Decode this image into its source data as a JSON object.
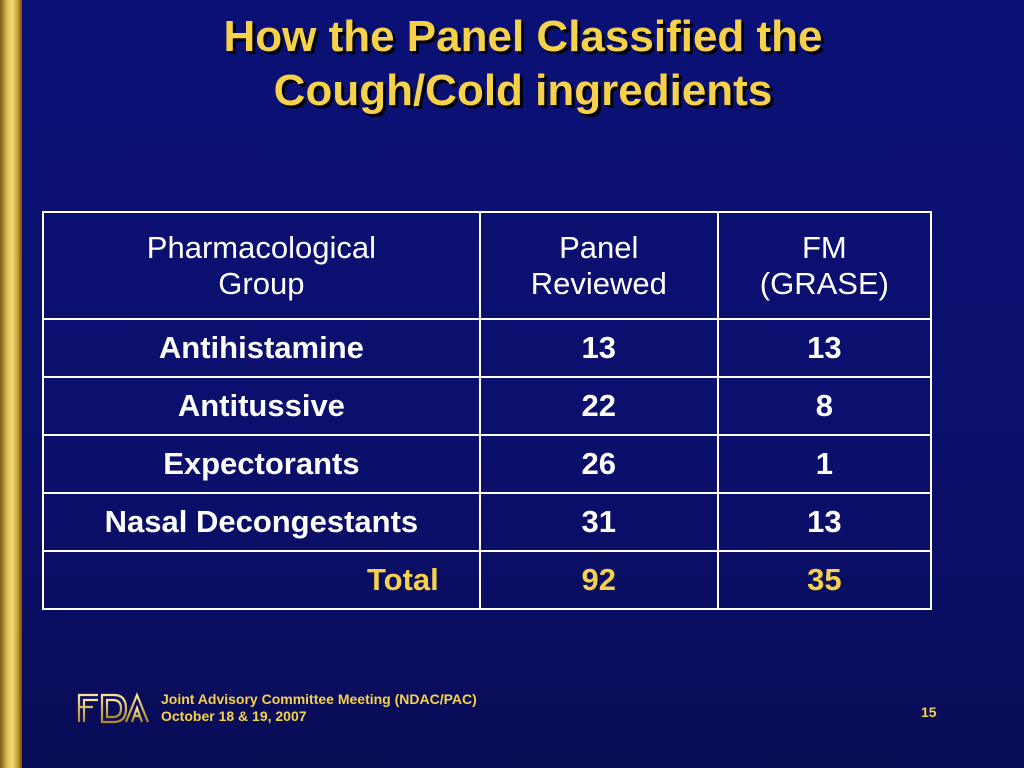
{
  "slide": {
    "title_line1": "How the Panel Classified the",
    "title_line2": "Cough/Cold ingredients"
  },
  "table": {
    "headers": [
      {
        "line1": "Pharmacological",
        "line2": "Group"
      },
      {
        "line1": "Panel",
        "line2": "Reviewed"
      },
      {
        "line1": "FM",
        "line2": "(GRASE)"
      }
    ],
    "rows": [
      {
        "group": "Antihistamine",
        "panel_reviewed": "13",
        "fm_grase": "13"
      },
      {
        "group": "Antitussive",
        "panel_reviewed": "22",
        "fm_grase": "8"
      },
      {
        "group": "Expectorants",
        "panel_reviewed": "26",
        "fm_grase": "1"
      },
      {
        "group": "Nasal Decongestants",
        "panel_reviewed": "31",
        "fm_grase": "13"
      }
    ],
    "total": {
      "label": "Total",
      "panel_reviewed": "92",
      "fm_grase": "35"
    }
  },
  "footer": {
    "logo": "FDA",
    "line1": "Joint Advisory Committee Meeting  (NDAC/PAC)",
    "line2": "October 18 & 19, 2007",
    "page_number": "15"
  },
  "colors": {
    "background": "#0b1076",
    "accent_gold": "#f6d24a",
    "text": "#ffffff",
    "border": "#ffffff"
  }
}
